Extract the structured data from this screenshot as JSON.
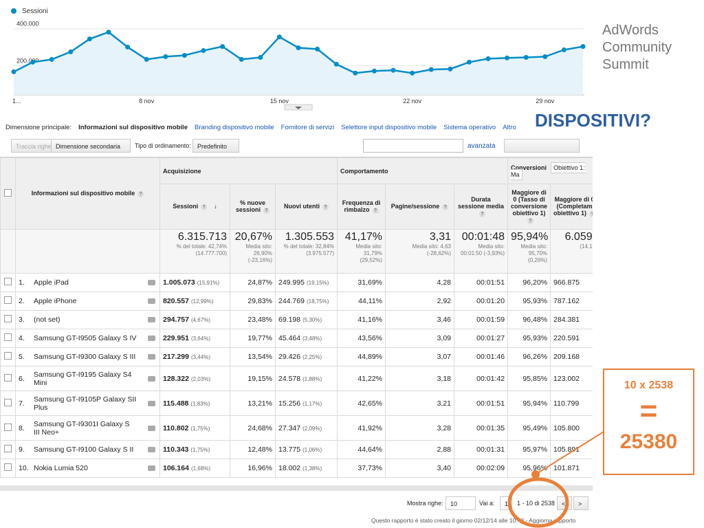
{
  "chart": {
    "type": "line",
    "legend": "Sessioni",
    "color": "#058dc7",
    "categories": [
      "1...",
      null,
      null,
      null,
      null,
      null,
      null,
      "8 nov",
      null,
      null,
      null,
      null,
      null,
      null,
      "15 nov",
      null,
      null,
      null,
      null,
      null,
      null,
      "22 nov",
      null,
      null,
      null,
      null,
      null,
      null,
      "29 nov",
      null,
      null
    ],
    "values": [
      144000,
      196000,
      211000,
      252000,
      322000,
      359000,
      278000,
      211000,
      226000,
      233000,
      259000,
      281000,
      211000,
      222000,
      333000,
      274000,
      267000,
      185000,
      137000,
      148000,
      152000,
      137000,
      156000,
      159000,
      196000,
      215000,
      219000,
      222000,
      226000,
      263000,
      281000
    ],
    "ylim": [
      0,
      440000
    ],
    "yticks": [
      {
        "value": 200000,
        "label": "200.000"
      },
      {
        "value": 400000,
        "label": "400.000"
      }
    ],
    "grid": true
  },
  "nav": {
    "label": "Dimensione principale:",
    "active": "Informazioni sul dispositivo mobile",
    "links": [
      "Branding dispositivo mobile",
      "Fornitore di servizi",
      "Selettore input dispositivo mobile",
      "Sistema operativo",
      "Altro"
    ]
  },
  "toolbar": {
    "plot_rows": "Traccia righe",
    "secondary": "Dimensione secondaria",
    "sort_label": "Tipo di ordinamento:",
    "sort": "Predefinito",
    "advanced": "avanzata"
  },
  "table": {
    "groups": [
      "Acquisizione",
      "Comportamento",
      "Conversioni",
      "Obiettivo 1: Ma"
    ],
    "columns": [
      "Informazioni sul dispositivo mobile",
      "Sessioni",
      "% nuove sessioni",
      "Nuovi utenti",
      "Frequenza di rimbalzo",
      "Pagine/sessione",
      "Durata sessione media",
      "Maggiore di 0 (Tasso di conversione obiettivo 1)",
      "Maggiore di 0 (Completam obiettivo 1)"
    ],
    "totals": [
      [
        "6.315.713",
        "% del totale: 42,74% (14.777.700)"
      ],
      [
        "20,67%",
        "Media sito: 26,90% (-23,16%)"
      ],
      [
        "1.305.553",
        "% del totale: 32,84% (3.975.577)"
      ],
      [
        "41,17%",
        "Media sito: 31,79% (29,52%)"
      ],
      [
        "3,31",
        "Media sito: 4,63 (-28,62%)"
      ],
      [
        "00:01:48",
        "Media sito: 00:01:50 (-3,93%)"
      ],
      [
        "95,94%",
        "Media sito: 95,70% (0,26%)"
      ],
      [
        "6.059.",
        "(14.14"
      ]
    ],
    "rows": [
      {
        "index": "1.",
        "device": "Apple iPad",
        "cells": [
          "1.005.073",
          "(15,91%)",
          "24,87%",
          "249.995",
          "(19,15%)",
          "31,69%",
          "4,28",
          "00:01:51",
          "96,20%",
          "966.875"
        ]
      },
      {
        "index": "2.",
        "device": "Apple iPhone",
        "cells": [
          "820.557",
          "(12,99%)",
          "29,83%",
          "244.769",
          "(18,75%)",
          "44,11%",
          "2,92",
          "00:01:20",
          "95,93%",
          "787.162"
        ]
      },
      {
        "index": "3.",
        "device": "(not set)",
        "cells": [
          "294.757",
          "(4,67%)",
          "23,48%",
          "69.198",
          "(5,30%)",
          "41,16%",
          "3,46",
          "00:01:59",
          "96,48%",
          "284.381"
        ]
      },
      {
        "index": "4.",
        "device": "Samsung GT-I9505 Galaxy S IV",
        "cells": [
          "229.951",
          "(3,64%)",
          "19,77%",
          "45.464",
          "(3,48%)",
          "43,56%",
          "3,09",
          "00:01:27",
          "95,93%",
          "220.591"
        ]
      },
      {
        "index": "5.",
        "device": "Samsung GT-I9300 Galaxy S III",
        "cells": [
          "217.299",
          "(3,44%)",
          "13,54%",
          "29.426",
          "(2,25%)",
          "44,89%",
          "3,07",
          "00:01:46",
          "96,26%",
          "209.168"
        ]
      },
      {
        "index": "6.",
        "device": "Samsung GT-I9195 Galaxy S4 Mini",
        "cells": [
          "128.322",
          "(2,03%)",
          "19,15%",
          "24.578",
          "(1,88%)",
          "41,22%",
          "3,18",
          "00:01:42",
          "95,85%",
          "123.002"
        ]
      },
      {
        "index": "7.",
        "device": "Samsung GT-I9105P Galaxy SII Plus",
        "cells": [
          "115.488",
          "(1,83%)",
          "13,21%",
          "15.256",
          "(1,17%)",
          "42,65%",
          "3,21",
          "00:01:51",
          "95,94%",
          "110.799"
        ]
      },
      {
        "index": "8.",
        "device": "Samsung GT-I9301I Galaxy S III Neo+",
        "cells": [
          "110.802",
          "(1,75%)",
          "24,68%",
          "27.347",
          "(2,09%)",
          "41,92%",
          "3,28",
          "00:01:35",
          "95,49%",
          "105.800"
        ]
      },
      {
        "index": "9.",
        "device": "Samsung GT-I9100 Galaxy S II",
        "cells": [
          "110.343",
          "(1,75%)",
          "12,48%",
          "13.775",
          "(1,06%)",
          "44,64%",
          "2,88",
          "00:01:31",
          "95,97%",
          "105.891"
        ]
      },
      {
        "index": "10.",
        "device": "Nokia Lumia 520",
        "cells": [
          "106.164",
          "(1,68%)",
          "16,96%",
          "18.002",
          "(1,38%)",
          "37,73%",
          "3,40",
          "00:02:09",
          "95,96%",
          "101.871"
        ]
      }
    ]
  },
  "footer": {
    "rows_label": "Mostra righe:",
    "rows": "10",
    "goto_label": "Vai a:",
    "goto": "1",
    "range": "1 - 10 di 2538",
    "report": "Questo rapporto è stato creato il giorno 02/12/14 alle 10:48 - Aggiorna rapporto"
  },
  "brand": [
    "AdWords",
    "Community",
    "Summit"
  ],
  "heading": "DISPOSITIVI?",
  "callout": {
    "formula": "10 x 2538",
    "equals": "=",
    "result": "25380"
  }
}
